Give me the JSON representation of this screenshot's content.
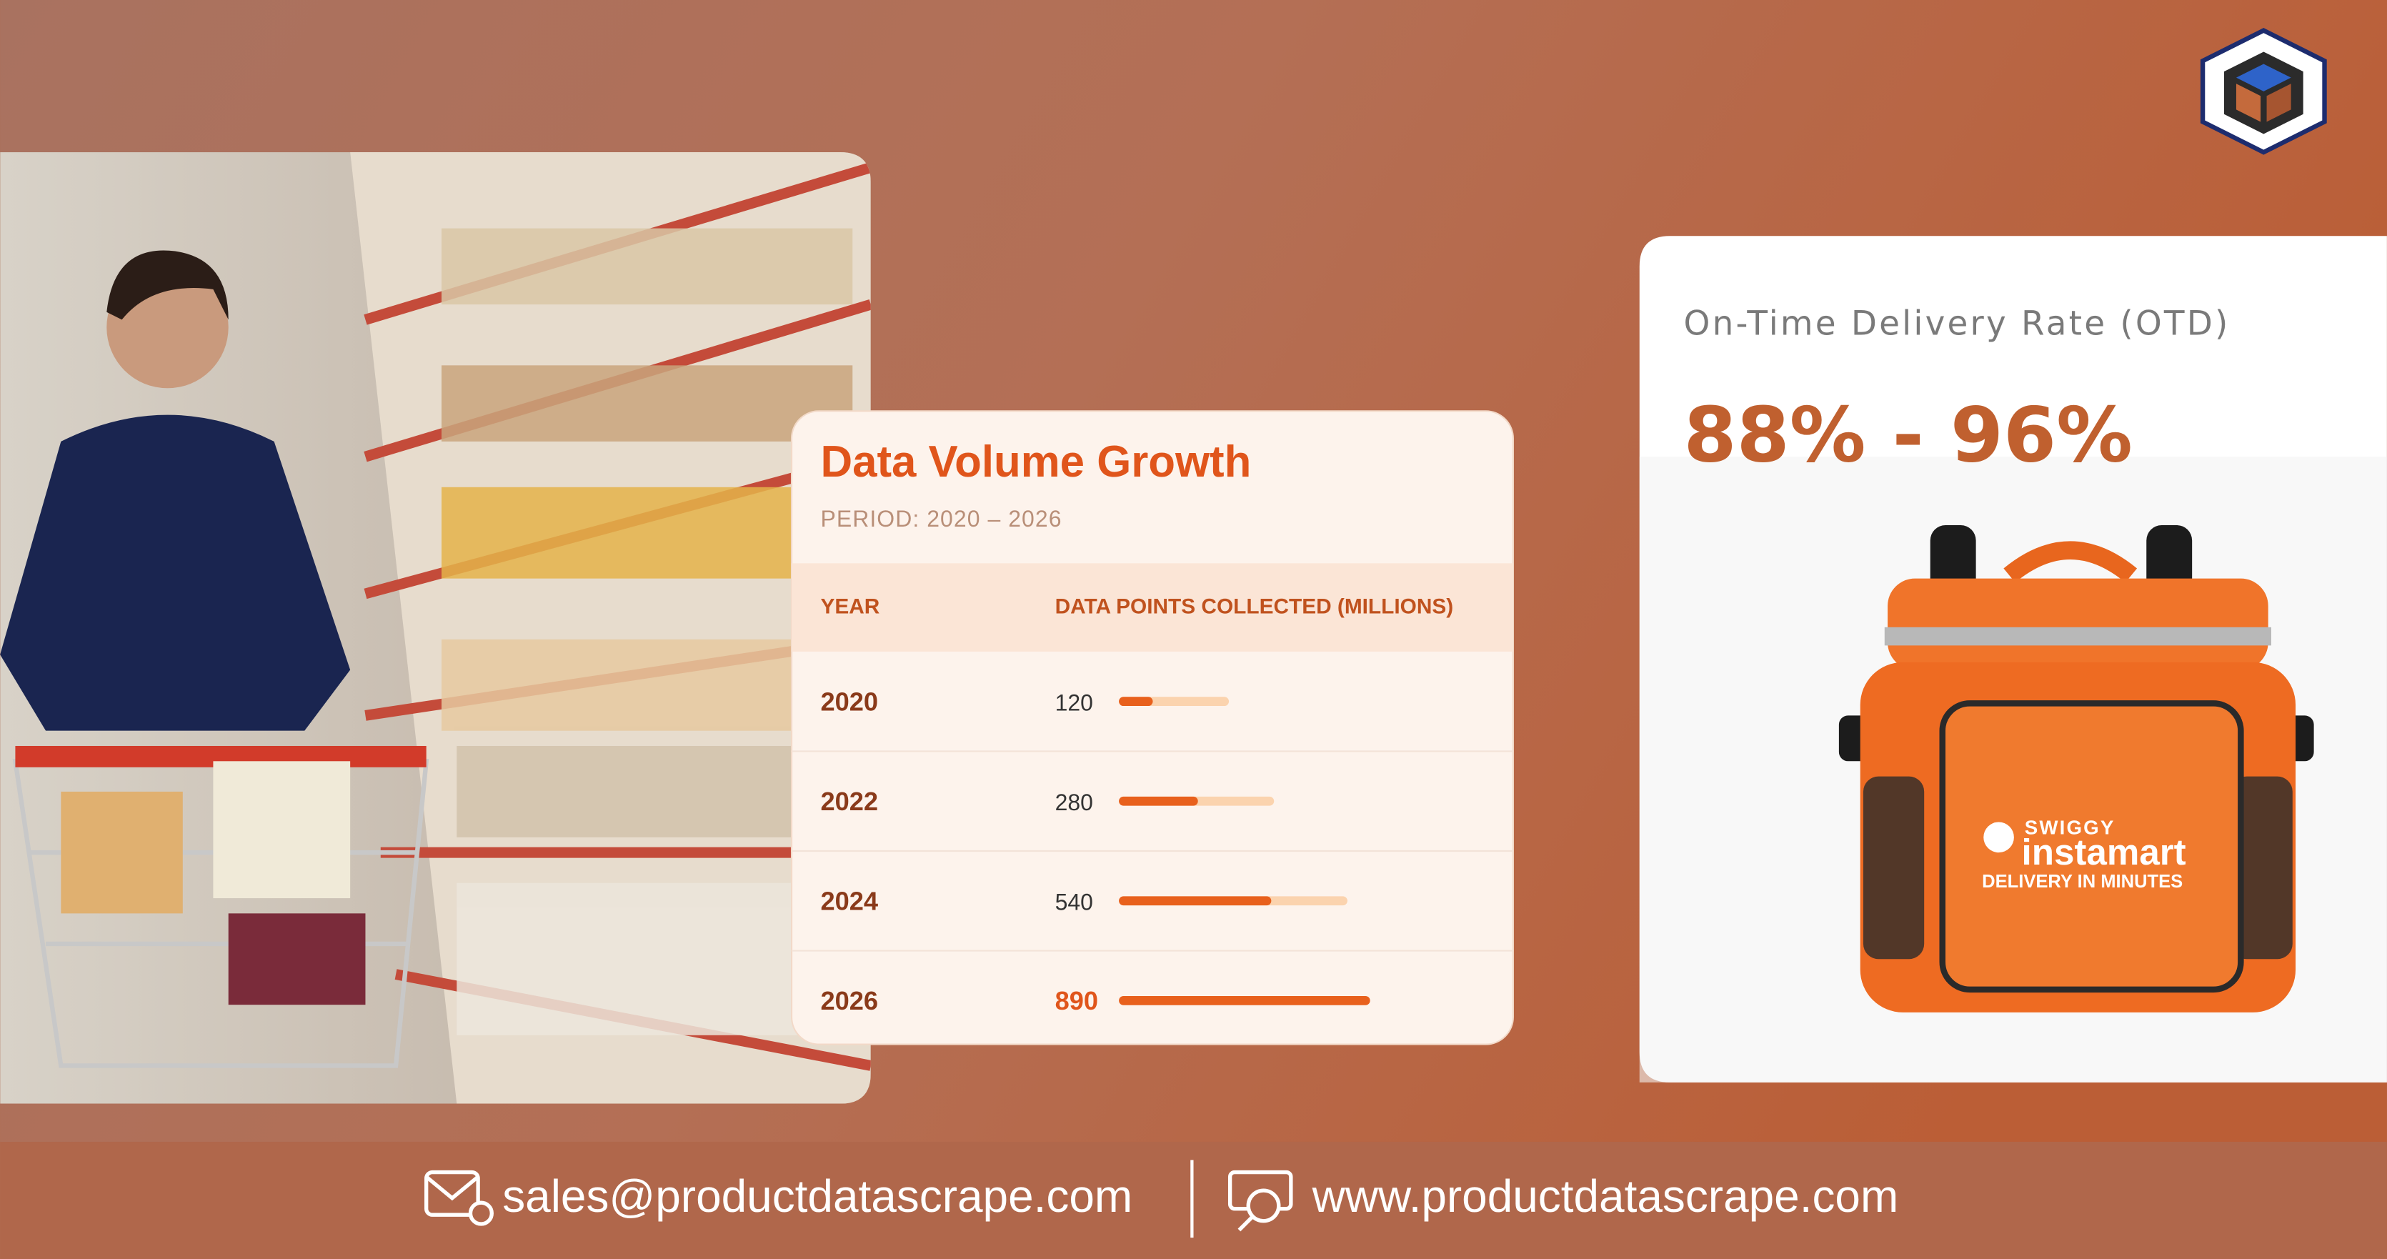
{
  "card": {
    "title": "Data Volume Growth",
    "subtitle": "PERIOD: 2020 – 2026",
    "columns": [
      "YEAR",
      "DATA POINTS COLLECTED (MILLIONS)"
    ],
    "rows": [
      {
        "year": "2020",
        "value": 120
      },
      {
        "year": "2022",
        "value": 280
      },
      {
        "year": "2024",
        "value": 540
      },
      {
        "year": "2026",
        "value": 890
      }
    ]
  },
  "otd": {
    "label": "On-Time Delivery Rate (OTD)",
    "value": "88% - 96%"
  },
  "bag": {
    "brand": "SWIGGY",
    "product": "instamart",
    "tagline": "DELIVERY IN MINUTES"
  },
  "footer": {
    "email": "sales@productdatascrape.com",
    "website": "www.productdatascrape.com"
  }
}
